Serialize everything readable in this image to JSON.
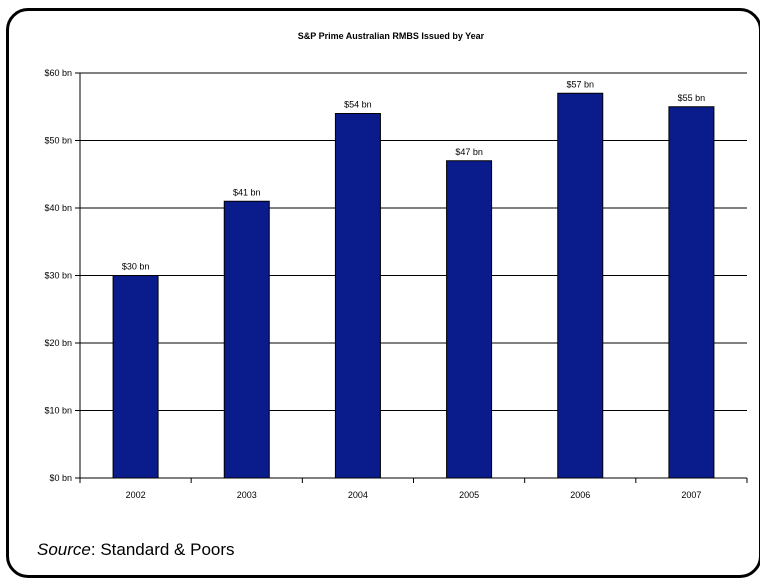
{
  "chart_data": {
    "type": "bar",
    "title": "S&P Prime Australian RMBS Issued by Year",
    "categories": [
      "2002",
      "2003",
      "2004",
      "2005",
      "2006",
      "2007"
    ],
    "series": [
      {
        "values": [
          30,
          41,
          54,
          47,
          57,
          55
        ]
      }
    ],
    "data_labels": [
      "$30 bn",
      "$41 bn",
      "$54 bn",
      "$47 bn",
      "$57 bn",
      "$55 bn"
    ],
    "y_ticks": [
      0,
      10,
      20,
      30,
      40,
      50,
      60
    ],
    "y_tick_labels": [
      "$0 bn",
      "$10 bn",
      "$20 bn",
      "$30 bn",
      "$40 bn",
      "$50 bn",
      "$60 bn"
    ],
    "ylim": [
      0,
      60
    ],
    "xlabel": "",
    "ylabel": "",
    "grid": true,
    "legend": "none",
    "bar_color": "#0A1B8C"
  },
  "source": {
    "label": "Source",
    "text": ": Standard & Poors"
  }
}
